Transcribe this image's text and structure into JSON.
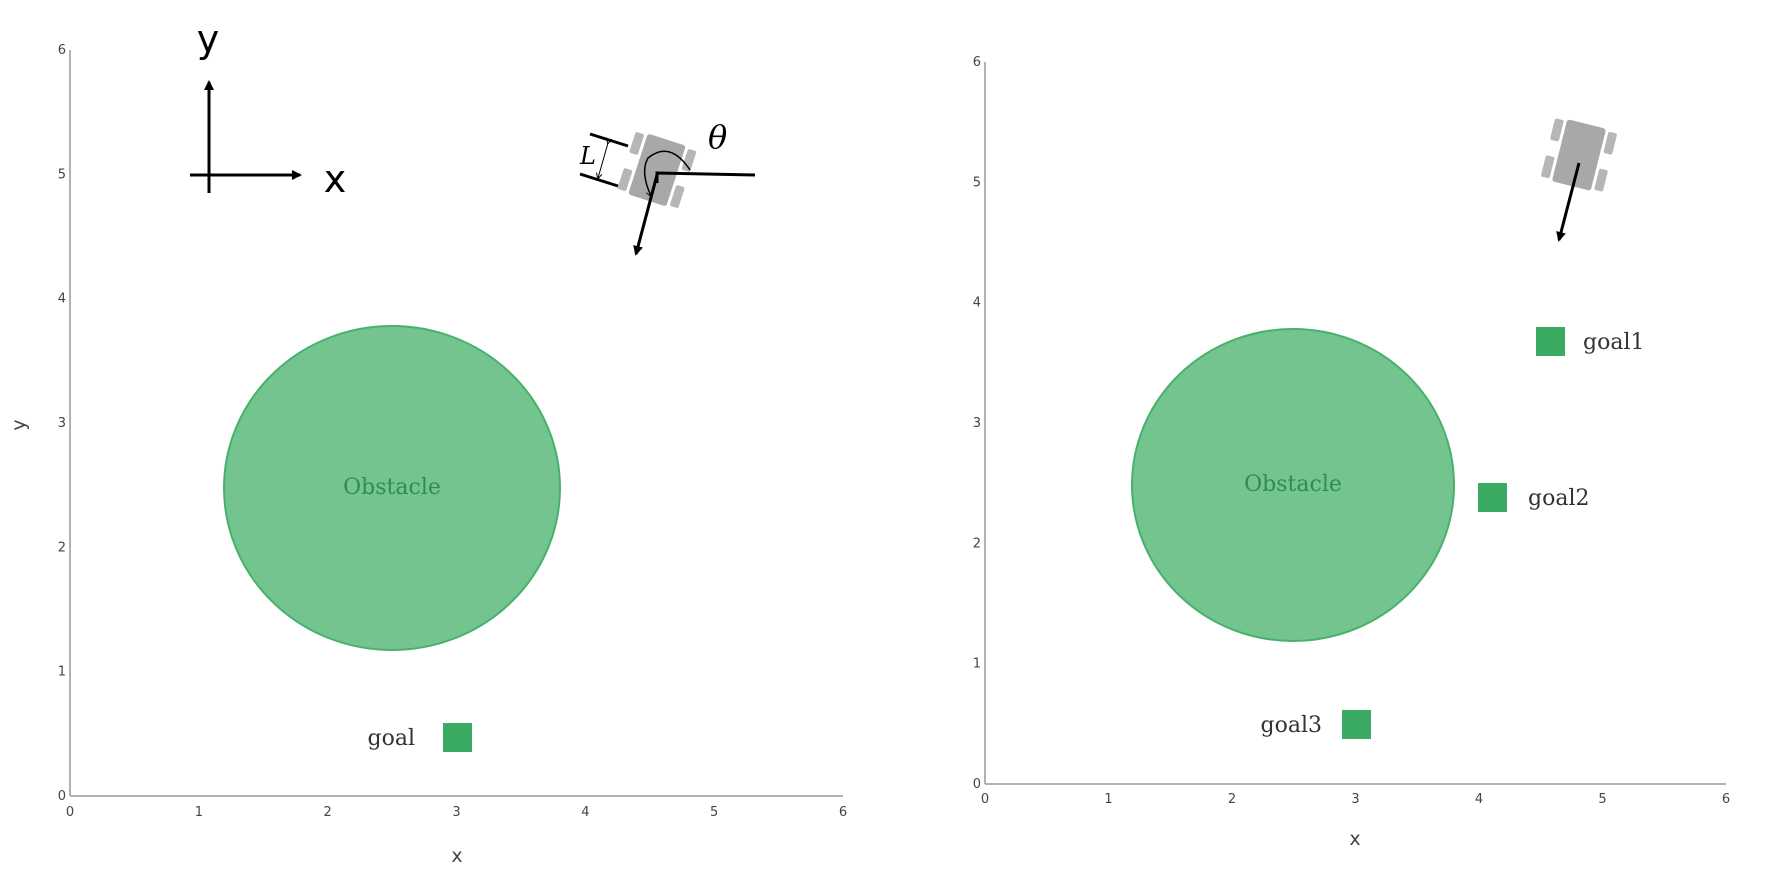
{
  "colors": {
    "obstacle_fill": "#74c490",
    "obstacle_stroke": "#47b16c",
    "obstacle_text": "#2e8b57",
    "goal_fill": "#3aaa62",
    "robot_body": "#a7a9a8",
    "axis": "#999999"
  },
  "left_plot": {
    "x_ticks": [
      "0",
      "1",
      "2",
      "3",
      "4",
      "5",
      "6"
    ],
    "y_ticks": [
      "0",
      "1",
      "2",
      "3",
      "4",
      "5",
      "6"
    ],
    "x_title": "x",
    "y_title": "y",
    "frame_x_label": "x",
    "frame_y_label": "y",
    "obstacle": {
      "label": "Obstacle",
      "center": [
        2.5,
        2.5
      ],
      "radius": 1.3
    },
    "goals": [
      {
        "label": "goal",
        "x": 3.0,
        "y": 0.5
      }
    ],
    "robot": {
      "length_symbol": "L",
      "angle_symbol": "θ"
    }
  },
  "right_plot": {
    "x_ticks": [
      "0",
      "1",
      "2",
      "3",
      "4",
      "5",
      "6"
    ],
    "y_ticks": [
      "0",
      "1",
      "2",
      "3",
      "4",
      "5",
      "6"
    ],
    "x_title": "x",
    "obstacle": {
      "label": "Obstacle",
      "center": [
        2.5,
        2.5
      ],
      "radius": 1.3
    },
    "goals": [
      {
        "label": "goal1",
        "x": 4.5,
        "y": 3.7
      },
      {
        "label": "goal2",
        "x": 4.1,
        "y": 2.4
      },
      {
        "label": "goal3",
        "x": 3.0,
        "y": 0.5
      }
    ]
  }
}
